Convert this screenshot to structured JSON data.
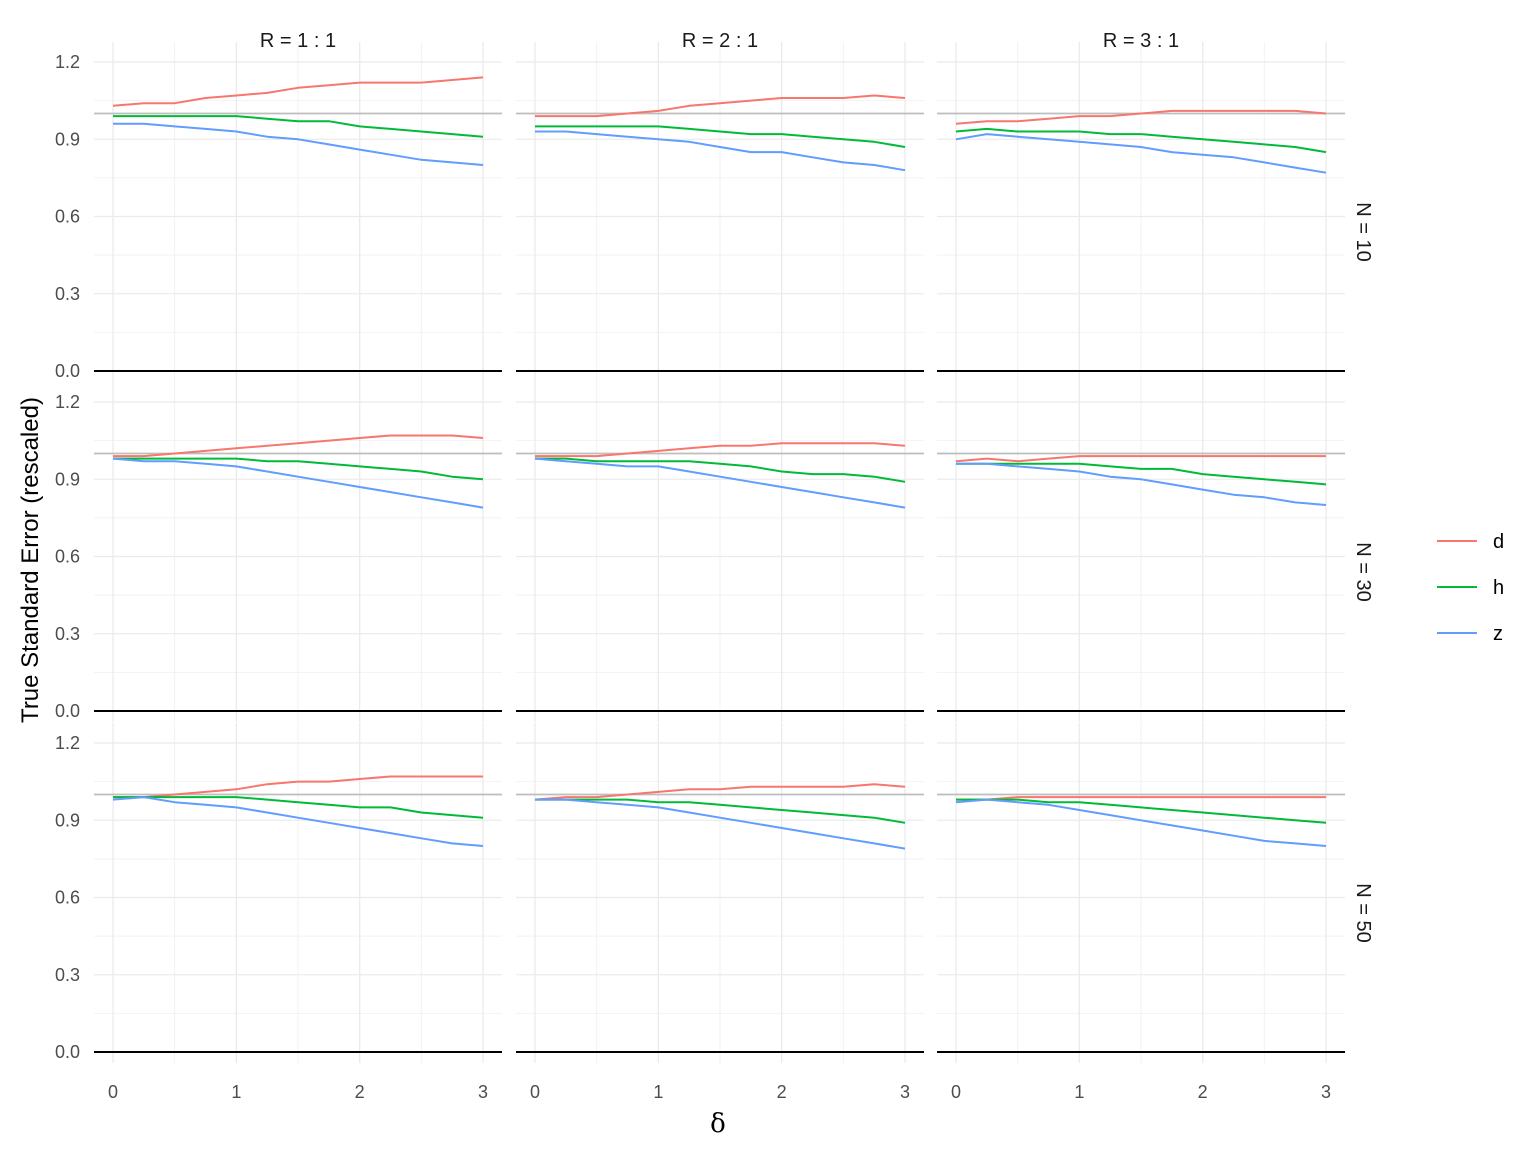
{
  "chart_data": {
    "type": "line",
    "facet_grid": {
      "columns": [
        "R = 1 : 1",
        "R = 2 : 1",
        "R = 3 : 1"
      ],
      "rows": [
        "N = 10",
        "N = 30",
        "N = 50"
      ]
    },
    "xlabel": "δ",
    "ylabel": "True Standard Error (rescaled)",
    "xlim": [
      0,
      3
    ],
    "ylim": [
      0,
      1.2
    ],
    "x_ticks": [
      "0",
      "1",
      "2",
      "3"
    ],
    "y_ticks": [
      "0.0",
      "0.3",
      "0.6",
      "0.9",
      "1.2"
    ],
    "reference_line": 1.0,
    "grid": true,
    "legend_position": "right",
    "series_colors": {
      "d": "#F8766D",
      "h": "#00BA38",
      "z": "#619CFF"
    },
    "x": [
      0,
      0.25,
      0.5,
      0.75,
      1,
      1.25,
      1.5,
      1.75,
      2,
      2.25,
      2.5,
      2.75,
      3
    ],
    "panels": [
      {
        "row": 0,
        "col": 0,
        "series": [
          {
            "name": "d",
            "values": [
              1.03,
              1.04,
              1.04,
              1.06,
              1.07,
              1.08,
              1.1,
              1.11,
              1.12,
              1.12,
              1.12,
              1.13,
              1.14
            ]
          },
          {
            "name": "h",
            "values": [
              0.99,
              0.99,
              0.99,
              0.99,
              0.99,
              0.98,
              0.97,
              0.97,
              0.95,
              0.94,
              0.93,
              0.92,
              0.91
            ]
          },
          {
            "name": "z",
            "values": [
              0.96,
              0.96,
              0.95,
              0.94,
              0.93,
              0.91,
              0.9,
              0.88,
              0.86,
              0.84,
              0.82,
              0.81,
              0.8
            ]
          }
        ]
      },
      {
        "row": 0,
        "col": 1,
        "series": [
          {
            "name": "d",
            "values": [
              0.99,
              0.99,
              0.99,
              1.0,
              1.01,
              1.03,
              1.04,
              1.05,
              1.06,
              1.06,
              1.06,
              1.07,
              1.06
            ]
          },
          {
            "name": "h",
            "values": [
              0.95,
              0.95,
              0.95,
              0.95,
              0.95,
              0.94,
              0.93,
              0.92,
              0.92,
              0.91,
              0.9,
              0.89,
              0.87
            ]
          },
          {
            "name": "z",
            "values": [
              0.93,
              0.93,
              0.92,
              0.91,
              0.9,
              0.89,
              0.87,
              0.85,
              0.85,
              0.83,
              0.81,
              0.8,
              0.78
            ]
          }
        ]
      },
      {
        "row": 0,
        "col": 2,
        "series": [
          {
            "name": "d",
            "values": [
              0.96,
              0.97,
              0.97,
              0.98,
              0.99,
              0.99,
              1.0,
              1.01,
              1.01,
              1.01,
              1.01,
              1.01,
              1.0
            ]
          },
          {
            "name": "h",
            "values": [
              0.93,
              0.94,
              0.93,
              0.93,
              0.93,
              0.92,
              0.92,
              0.91,
              0.9,
              0.89,
              0.88,
              0.87,
              0.85
            ]
          },
          {
            "name": "z",
            "values": [
              0.9,
              0.92,
              0.91,
              0.9,
              0.89,
              0.88,
              0.87,
              0.85,
              0.84,
              0.83,
              0.81,
              0.79,
              0.77
            ]
          }
        ]
      },
      {
        "row": 1,
        "col": 0,
        "series": [
          {
            "name": "d",
            "values": [
              0.99,
              0.99,
              1.0,
              1.01,
              1.02,
              1.03,
              1.04,
              1.05,
              1.06,
              1.07,
              1.07,
              1.07,
              1.06
            ]
          },
          {
            "name": "h",
            "values": [
              0.98,
              0.98,
              0.98,
              0.98,
              0.98,
              0.97,
              0.97,
              0.96,
              0.95,
              0.94,
              0.93,
              0.91,
              0.9
            ]
          },
          {
            "name": "z",
            "values": [
              0.98,
              0.97,
              0.97,
              0.96,
              0.95,
              0.93,
              0.91,
              0.89,
              0.87,
              0.85,
              0.83,
              0.81,
              0.79
            ]
          }
        ]
      },
      {
        "row": 1,
        "col": 1,
        "series": [
          {
            "name": "d",
            "values": [
              0.99,
              0.99,
              0.99,
              1.0,
              1.01,
              1.02,
              1.03,
              1.03,
              1.04,
              1.04,
              1.04,
              1.04,
              1.03
            ]
          },
          {
            "name": "h",
            "values": [
              0.98,
              0.98,
              0.97,
              0.97,
              0.97,
              0.97,
              0.96,
              0.95,
              0.93,
              0.92,
              0.92,
              0.91,
              0.89
            ]
          },
          {
            "name": "z",
            "values": [
              0.98,
              0.97,
              0.96,
              0.95,
              0.95,
              0.93,
              0.91,
              0.89,
              0.87,
              0.85,
              0.83,
              0.81,
              0.79
            ]
          }
        ]
      },
      {
        "row": 1,
        "col": 2,
        "series": [
          {
            "name": "d",
            "values": [
              0.97,
              0.98,
              0.97,
              0.98,
              0.99,
              0.99,
              0.99,
              0.99,
              0.99,
              0.99,
              0.99,
              0.99,
              0.99
            ]
          },
          {
            "name": "h",
            "values": [
              0.96,
              0.96,
              0.96,
              0.96,
              0.96,
              0.95,
              0.94,
              0.94,
              0.92,
              0.91,
              0.9,
              0.89,
              0.88
            ]
          },
          {
            "name": "z",
            "values": [
              0.96,
              0.96,
              0.95,
              0.94,
              0.93,
              0.91,
              0.9,
              0.88,
              0.86,
              0.84,
              0.83,
              0.81,
              0.8
            ]
          }
        ]
      },
      {
        "row": 2,
        "col": 0,
        "series": [
          {
            "name": "d",
            "values": [
              0.99,
              0.99,
              1.0,
              1.01,
              1.02,
              1.04,
              1.05,
              1.05,
              1.06,
              1.07,
              1.07,
              1.07,
              1.07
            ]
          },
          {
            "name": "h",
            "values": [
              0.99,
              0.99,
              0.99,
              0.99,
              0.99,
              0.98,
              0.97,
              0.96,
              0.95,
              0.95,
              0.93,
              0.92,
              0.91
            ]
          },
          {
            "name": "z",
            "values": [
              0.98,
              0.99,
              0.97,
              0.96,
              0.95,
              0.93,
              0.91,
              0.89,
              0.87,
              0.85,
              0.83,
              0.81,
              0.8
            ]
          }
        ]
      },
      {
        "row": 2,
        "col": 1,
        "series": [
          {
            "name": "d",
            "values": [
              0.98,
              0.99,
              0.99,
              1.0,
              1.01,
              1.02,
              1.02,
              1.03,
              1.03,
              1.03,
              1.03,
              1.04,
              1.03
            ]
          },
          {
            "name": "h",
            "values": [
              0.98,
              0.98,
              0.98,
              0.98,
              0.97,
              0.97,
              0.96,
              0.95,
              0.94,
              0.93,
              0.92,
              0.91,
              0.89
            ]
          },
          {
            "name": "z",
            "values": [
              0.98,
              0.98,
              0.97,
              0.96,
              0.95,
              0.93,
              0.91,
              0.89,
              0.87,
              0.85,
              0.83,
              0.81,
              0.79
            ]
          }
        ]
      },
      {
        "row": 2,
        "col": 2,
        "series": [
          {
            "name": "d",
            "values": [
              0.98,
              0.98,
              0.99,
              0.99,
              0.99,
              0.99,
              0.99,
              0.99,
              0.99,
              0.99,
              0.99,
              0.99,
              0.99
            ]
          },
          {
            "name": "h",
            "values": [
              0.98,
              0.98,
              0.98,
              0.97,
              0.97,
              0.96,
              0.95,
              0.94,
              0.93,
              0.92,
              0.91,
              0.9,
              0.89
            ]
          },
          {
            "name": "z",
            "values": [
              0.97,
              0.98,
              0.97,
              0.96,
              0.94,
              0.92,
              0.9,
              0.88,
              0.86,
              0.84,
              0.82,
              0.81,
              0.8
            ]
          }
        ]
      }
    ]
  }
}
